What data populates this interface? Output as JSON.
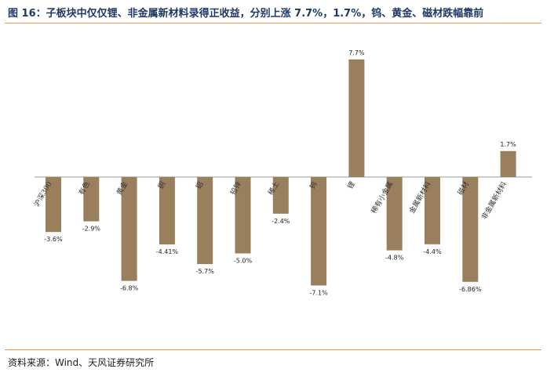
{
  "title": "图 16：子板块中仅仅锂、非金属新材料录得正收益，分别上涨 7.7%，1.7%，钨、黄金、磁材跌幅靠前",
  "source": "资料来源：Wind、天风证券研究所",
  "colors": {
    "bar": "#9a7f5c",
    "rule": "#e8924a",
    "title": "#1f3864"
  },
  "chart_data": {
    "type": "bar",
    "title": "",
    "xlabel": "",
    "ylabel": "",
    "ylim": [
      -8,
      8
    ],
    "categories": [
      "沪深300",
      "有色",
      "黄金",
      "铜",
      "铝",
      "铅锌",
      "稀土",
      "钨",
      "锂",
      "稀有小金属",
      "金属新材料",
      "磁材",
      "非金属新材料"
    ],
    "values": [
      -3.6,
      -2.9,
      -6.8,
      -4.41,
      -5.7,
      -5.0,
      -2.4,
      -7.1,
      7.7,
      -4.8,
      -4.4,
      -6.86,
      1.7
    ],
    "labels": [
      "-3.6%",
      "-2.9%",
      "-6.8%",
      "-4.41%",
      "-5.7%",
      "-5.0%",
      "-2.4%",
      "-7.1%",
      "7.7%",
      "-4.8%",
      "-4.4%",
      "-6.86%",
      "1.7%"
    ]
  }
}
